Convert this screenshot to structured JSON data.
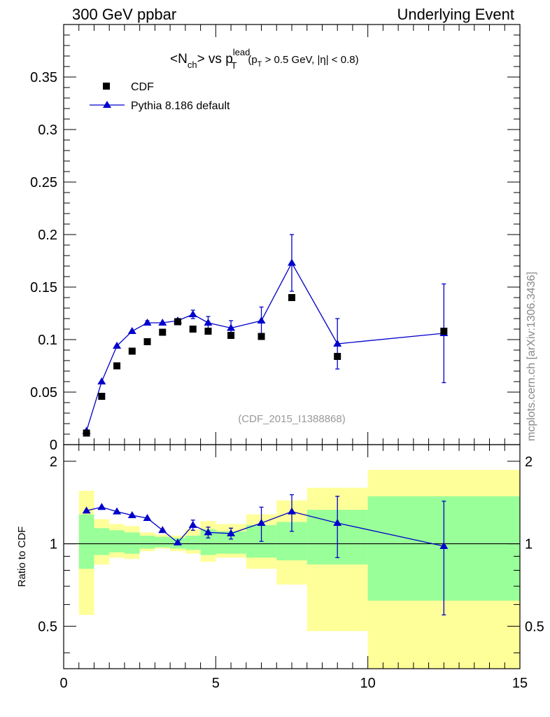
{
  "header": {
    "left": "300 GeV ppbar",
    "right": "Underlying Event"
  },
  "title": {
    "prefix": "<N",
    "sub1": "ch",
    "mid": "> vs p",
    "sup": "lead",
    "sub2": "T",
    "cut_open": "(p",
    "cut_sub": "T",
    "cut_rest": " > 0.5 GeV, |η| < 0.8)"
  },
  "watermark": "(CDF_2015_I1388868)",
  "side_text": "mcplots.cern.ch [arXiv:1306.3436]",
  "legend": {
    "data_label": "CDF",
    "mc_label": "Pythia 8.186 default"
  },
  "colors": {
    "mc": "#0000cc",
    "green_band": "#99ff99",
    "yellow_band": "#ffff99",
    "data": "#000000"
  },
  "chart_data": [
    {
      "type": "scatter",
      "panel": "main",
      "xlim": [
        0,
        15
      ],
      "ylim": [
        0,
        0.4
      ],
      "y_ticks": [
        "0",
        "0.05",
        "0.1",
        "0.15",
        "0.2",
        "0.25",
        "0.3",
        "0.35"
      ],
      "series": [
        {
          "name": "CDF",
          "x": [
            0.75,
            1.25,
            1.75,
            2.25,
            2.75,
            3.25,
            3.75,
            4.25,
            4.75,
            5.5,
            6.5,
            7.5,
            9.0,
            12.5
          ],
          "y": [
            0.011,
            0.046,
            0.075,
            0.089,
            0.098,
            0.107,
            0.117,
            0.11,
            0.108,
            0.104,
            0.103,
            0.14,
            0.084,
            0.108
          ]
        },
        {
          "name": "Pythia 8.186 default",
          "x": [
            0.75,
            1.25,
            1.75,
            2.25,
            2.75,
            3.25,
            3.75,
            4.25,
            4.75,
            5.5,
            6.5,
            7.5,
            9.0,
            12.5
          ],
          "y": [
            0.013,
            0.06,
            0.094,
            0.108,
            0.116,
            0.116,
            0.118,
            0.124,
            0.116,
            0.111,
            0.118,
            0.173,
            0.096,
            0.106
          ],
          "err_low": [
            0,
            0,
            0,
            0,
            0.002,
            0,
            0.002,
            0.004,
            0.006,
            0.007,
            0.013,
            0.027,
            0.024,
            0.047
          ],
          "err_high": [
            0,
            0,
            0,
            0,
            0.002,
            0,
            0.002,
            0.004,
            0.006,
            0.007,
            0.013,
            0.027,
            0.024,
            0.047
          ]
        }
      ]
    },
    {
      "type": "line",
      "panel": "ratio",
      "ylabel": "Ratio to CDF",
      "xlim": [
        0,
        15
      ],
      "ylim": [
        0.35,
        2.3
      ],
      "x_ticks": [
        "0",
        "5",
        "10",
        "15"
      ],
      "y_ticks": [
        "0.5",
        "1",
        "2"
      ],
      "bands": {
        "edges": [
          0.5,
          1.0,
          1.5,
          2.0,
          2.5,
          3.0,
          3.5,
          4.0,
          4.5,
          5.0,
          6.0,
          7.0,
          8.0,
          10.0,
          15.0
        ],
        "green_low": [
          0.81,
          0.91,
          0.93,
          0.92,
          0.96,
          0.97,
          0.96,
          0.95,
          0.91,
          0.92,
          0.89,
          0.87,
          0.84,
          0.62
        ],
        "green_high": [
          1.28,
          1.14,
          1.12,
          1.1,
          1.07,
          1.06,
          1.05,
          1.07,
          1.13,
          1.11,
          1.17,
          1.2,
          1.33,
          1.49
        ],
        "yellow_low": [
          0.55,
          0.84,
          0.89,
          0.88,
          0.94,
          0.96,
          0.94,
          0.92,
          0.86,
          0.89,
          0.81,
          0.71,
          0.48,
          0.35
        ],
        "yellow_high": [
          1.56,
          1.23,
          1.18,
          1.16,
          1.1,
          1.08,
          1.07,
          1.13,
          1.21,
          1.18,
          1.28,
          1.44,
          1.6,
          1.86
        ]
      },
      "reference_line": 1,
      "series": [
        {
          "name": "Pythia 8.186 default",
          "x": [
            0.75,
            1.25,
            1.75,
            2.25,
            2.75,
            3.25,
            3.75,
            4.25,
            4.75,
            5.5,
            6.5,
            7.5,
            9.0,
            12.5
          ],
          "y": [
            1.32,
            1.36,
            1.31,
            1.27,
            1.24,
            1.12,
            1.01,
            1.17,
            1.1,
            1.09,
            1.19,
            1.31,
            1.19,
            0.98
          ],
          "err_low": [
            0,
            0,
            0,
            0,
            0,
            0,
            0,
            0.05,
            0.05,
            0.05,
            0.17,
            0.2,
            0.3,
            0.43
          ],
          "err_high": [
            0,
            0,
            0,
            0,
            0,
            0,
            0,
            0.05,
            0.05,
            0.05,
            0.17,
            0.2,
            0.3,
            0.45
          ]
        }
      ]
    }
  ]
}
